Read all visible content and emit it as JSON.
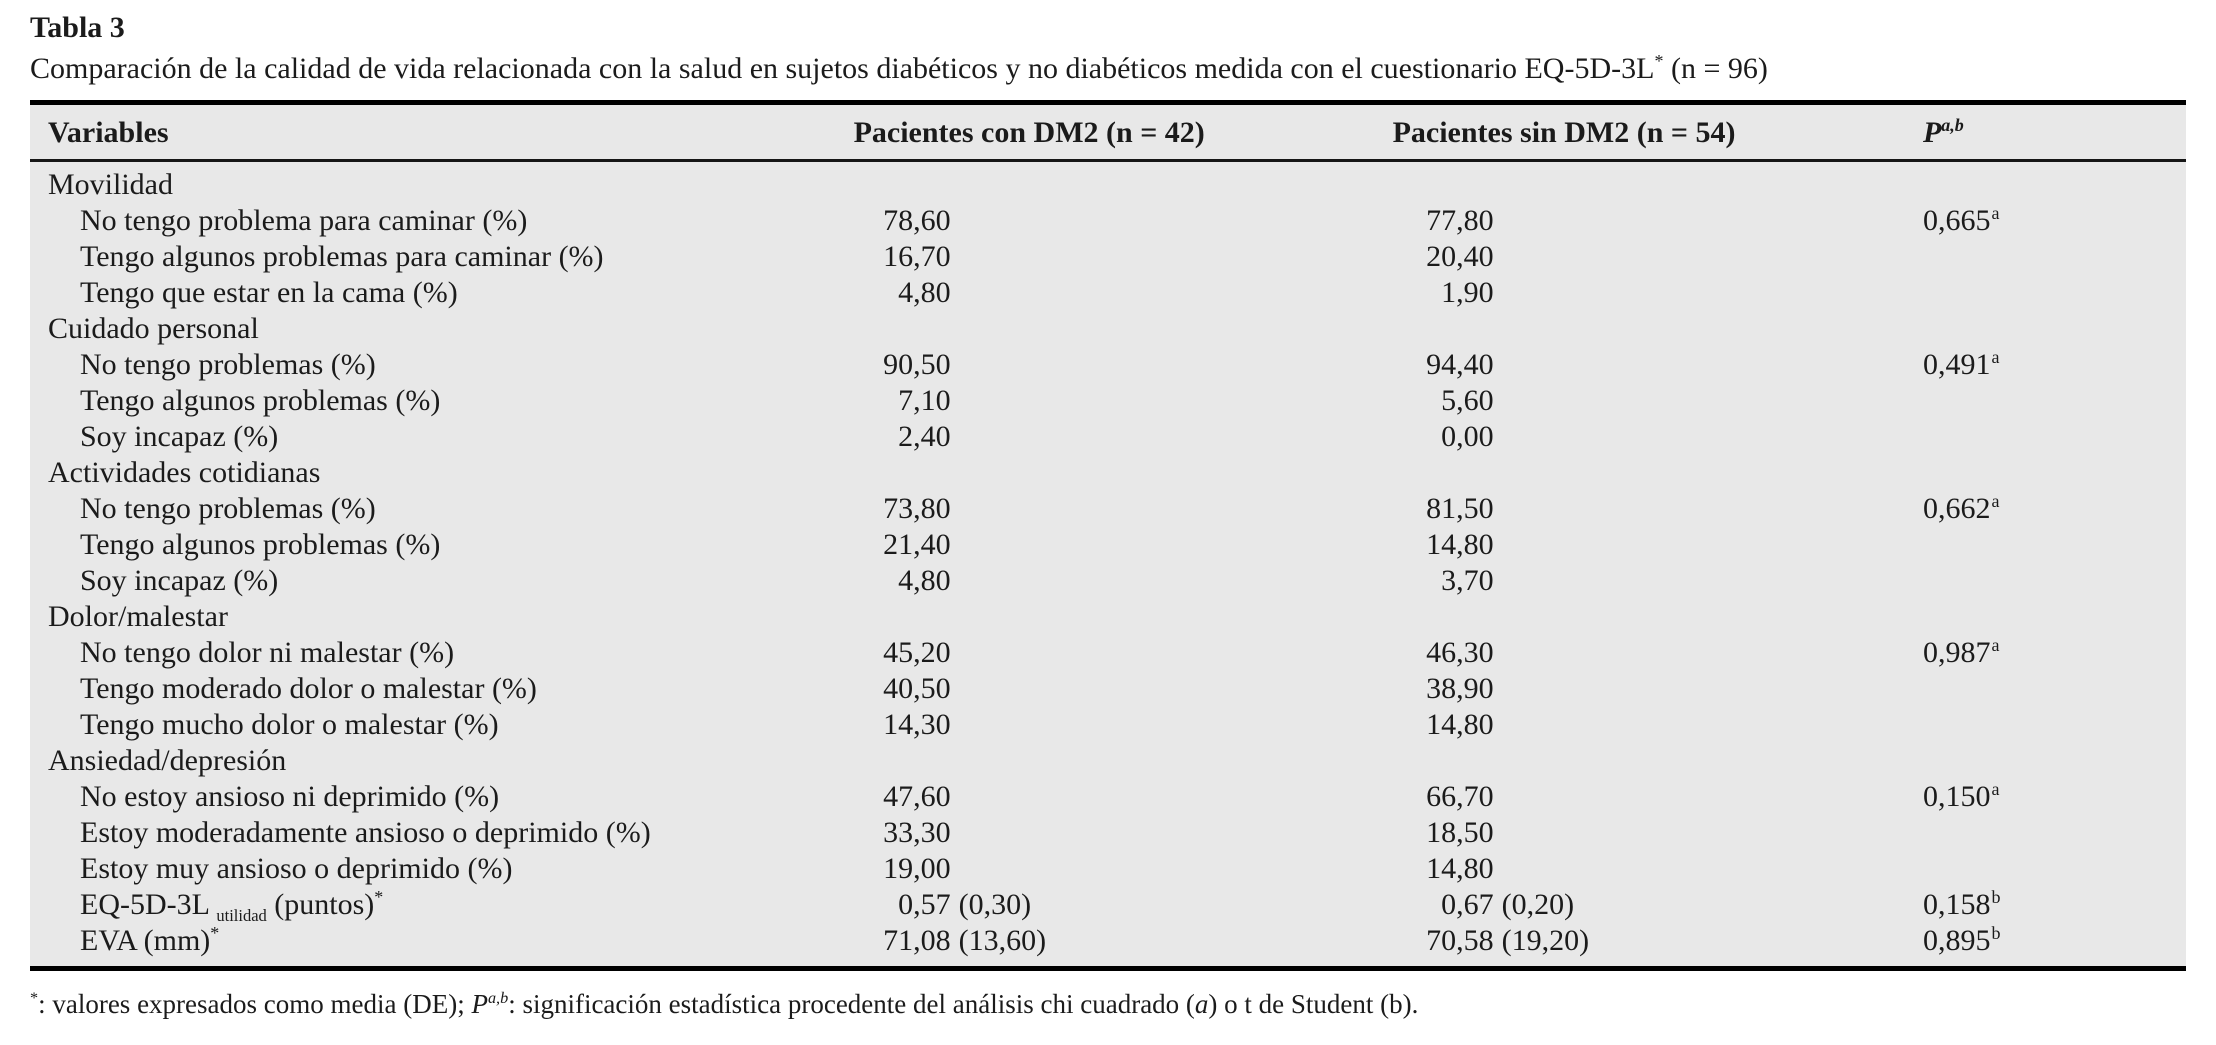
{
  "table": {
    "label": "Tabla 3",
    "caption": "Comparación de la calidad de vida relacionada con la salud en sujetos diabéticos y no diabéticos medida con el cuestionario EQ-5D-3L",
    "caption_sup": "*",
    "caption_tail": " (n = 96)",
    "columns": [
      {
        "label": "Variables"
      },
      {
        "label": "Pacientes con DM2 (n = 42)"
      },
      {
        "label": "Pacientes sin DM2 (n = 54)"
      },
      {
        "label": "P",
        "sup": "a,b"
      }
    ],
    "rows": [
      {
        "type": "section",
        "label": "Movilidad"
      },
      {
        "type": "item",
        "label": "No tengo problema para caminar (%)",
        "dm2": "78,60",
        "sin": "77,80",
        "p": "0,665",
        "p_sup": "a"
      },
      {
        "type": "item",
        "label": "Tengo algunos problemas para caminar (%)",
        "dm2": "16,70",
        "sin": "20,40"
      },
      {
        "type": "item",
        "label": "Tengo que estar en la cama (%)",
        "dm2": "4,80",
        "sin": "1,90"
      },
      {
        "type": "section",
        "label": "Cuidado personal"
      },
      {
        "type": "item",
        "label": "No tengo problemas (%)",
        "dm2": "90,50",
        "sin": "94,40",
        "p": "0,491",
        "p_sup": "a"
      },
      {
        "type": "item",
        "label": "Tengo algunos problemas (%)",
        "dm2": "7,10",
        "sin": "5,60"
      },
      {
        "type": "item",
        "label": "Soy incapaz (%)",
        "dm2": "2,40",
        "sin": "0,00"
      },
      {
        "type": "section",
        "label": "Actividades cotidianas"
      },
      {
        "type": "item",
        "label": "No tengo problemas (%)",
        "dm2": "73,80",
        "sin": "81,50",
        "p": "0,662",
        "p_sup": "a"
      },
      {
        "type": "item",
        "label": "Tengo algunos problemas (%)",
        "dm2": "21,40",
        "sin": "14,80"
      },
      {
        "type": "item",
        "label": "Soy incapaz (%)",
        "dm2": "4,80",
        "sin": "3,70"
      },
      {
        "type": "section",
        "label": "Dolor/malestar"
      },
      {
        "type": "item",
        "label": "No tengo dolor ni malestar (%)",
        "dm2": "45,20",
        "sin": "46,30",
        "p": "0,987",
        "p_sup": "a"
      },
      {
        "type": "item",
        "label": "Tengo moderado dolor o malestar (%)",
        "dm2": "40,50",
        "sin": "38,90"
      },
      {
        "type": "item",
        "label": "Tengo mucho dolor o malestar (%)",
        "dm2": "14,30",
        "sin": "14,80"
      },
      {
        "type": "section",
        "label": "Ansiedad/depresión"
      },
      {
        "type": "item",
        "label": "No estoy ansioso ni deprimido (%)",
        "dm2": "47,60",
        "sin": "66,70",
        "p": "0,150",
        "p_sup": "a"
      },
      {
        "type": "item",
        "label": "Estoy moderadamente ansioso o deprimido (%)",
        "dm2": "33,30",
        "sin": "18,50"
      },
      {
        "type": "item",
        "label": "Estoy muy ansioso o deprimido (%)",
        "dm2": "19,00",
        "sin": "14,80"
      },
      {
        "type": "item",
        "label": "EQ-5D-3L ",
        "label_sub": "utilidad",
        "label_after": " (puntos)",
        "label_sup": "*",
        "dm2": "0,57",
        "dm2_sd": "(0,30)",
        "sin": "0,67",
        "sin_sd": "(0,20)",
        "p": "0,158",
        "p_sup": "b"
      },
      {
        "type": "item",
        "label": "EVA (mm)",
        "label_sup": "*",
        "dm2": "71,08",
        "dm2_sd": "(13,60)",
        "sin": "70,58",
        "sin_sd": "(19,20)",
        "p": "0,895",
        "p_sup": "b"
      }
    ],
    "footnote": {
      "sup1": "*",
      "part1": ": valores expresados como media (DE); ",
      "p": "P",
      "p_sup": "a,b",
      "part2": ": significación estadística procedente del análisis chi cuadrado (",
      "a_italic": "a",
      "part3": ") o t de Student (b)."
    }
  }
}
